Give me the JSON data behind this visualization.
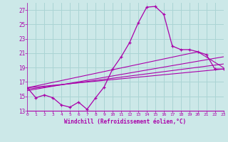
{
  "xlabel": "Windchill (Refroidissement éolien,°C)",
  "background_color": "#cce8e8",
  "grid_color": "#aad4d4",
  "line_color": "#aa00aa",
  "xlim": [
    0,
    23
  ],
  "ylim": [
    13,
    28
  ],
  "yticks": [
    13,
    15,
    17,
    19,
    21,
    23,
    25,
    27
  ],
  "xticks": [
    0,
    1,
    2,
    3,
    4,
    5,
    6,
    7,
    8,
    9,
    10,
    11,
    12,
    13,
    14,
    15,
    16,
    17,
    18,
    19,
    20,
    21,
    22,
    23
  ],
  "curve1_x": [
    0,
    1,
    2,
    3,
    4,
    5,
    6,
    7,
    8,
    9,
    10,
    11,
    12,
    13,
    14,
    15,
    16,
    17,
    18,
    19,
    20,
    21,
    22,
    23
  ],
  "curve1_y": [
    16.2,
    14.8,
    15.2,
    14.8,
    13.8,
    13.5,
    14.2,
    13.2,
    14.8,
    16.3,
    18.8,
    20.5,
    22.5,
    25.2,
    27.4,
    27.5,
    26.4,
    22.0,
    21.5,
    21.5,
    21.2,
    20.8,
    18.8,
    18.8
  ],
  "curve2_x": [
    0,
    23
  ],
  "curve2_y": [
    16.2,
    18.8
  ],
  "curve3_x": [
    0,
    23
  ],
  "curve3_y": [
    16.0,
    19.5
  ],
  "curve4_x": [
    0,
    23
  ],
  "curve4_y": [
    15.8,
    20.5
  ],
  "curve5_x": [
    0,
    20,
    23
  ],
  "curve5_y": [
    16.2,
    21.2,
    19.0
  ]
}
